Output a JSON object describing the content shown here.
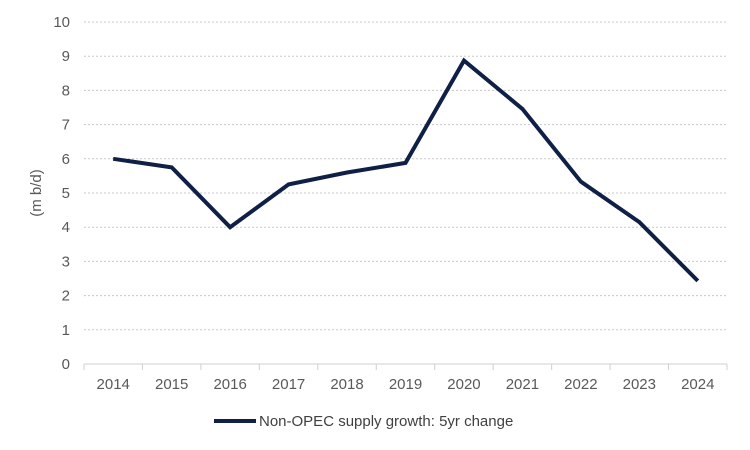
{
  "chart_data": {
    "type": "line",
    "title": "",
    "xlabel": "",
    "ylabel": "(m b/d)",
    "categories": [
      "2014",
      "2015",
      "2016",
      "2017",
      "2018",
      "2019",
      "2020",
      "2021",
      "2022",
      "2023",
      "2024"
    ],
    "series": [
      {
        "name": "Non-OPEC supply growth: 5yr change",
        "color": "#0f1f45",
        "values": [
          6.0,
          5.75,
          4.0,
          5.25,
          5.6,
          5.88,
          8.87,
          7.46,
          5.33,
          4.15,
          2.43
        ]
      }
    ],
    "ylim": [
      0,
      10
    ],
    "yticks": [
      "0",
      "1",
      "2",
      "3",
      "4",
      "5",
      "6",
      "7",
      "8",
      "9",
      "10"
    ],
    "grid": true,
    "legend_position": "bottom"
  }
}
